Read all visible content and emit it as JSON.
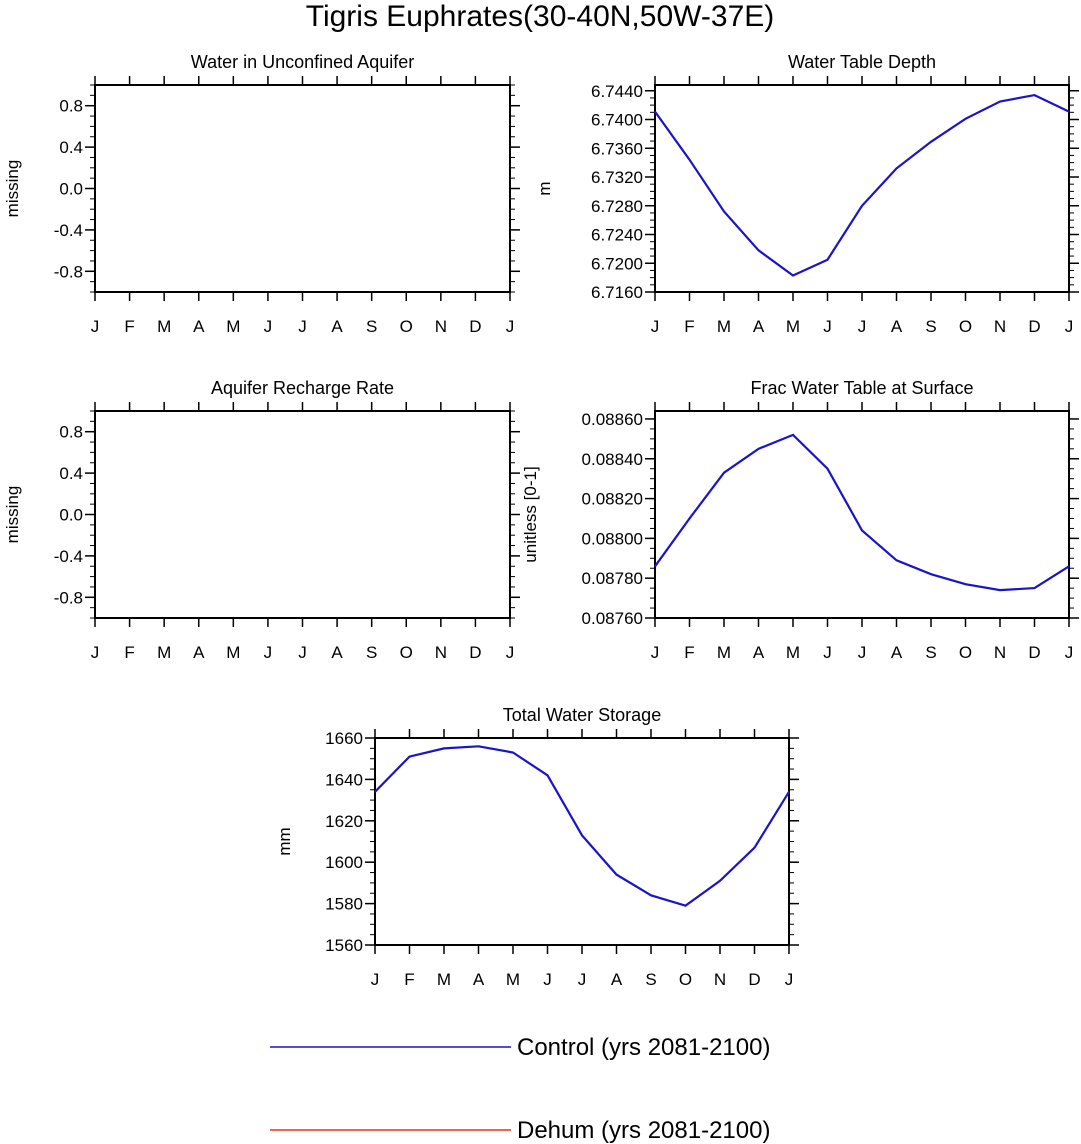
{
  "figure": {
    "title": "Tigris Euphrates(30-40N,50W-37E)"
  },
  "chart_data": [
    {
      "id": "unconfined",
      "type": "line",
      "title": "Water in Unconfined Aquifer",
      "ylabel": "missing",
      "xlabel": "",
      "x_ticks": [
        "J",
        "F",
        "M",
        "A",
        "M",
        "J",
        "J",
        "A",
        "S",
        "O",
        "N",
        "D",
        "J"
      ],
      "ylim": [
        -1.0,
        1.0
      ],
      "y_ticks": [
        -0.8,
        -0.4,
        0.0,
        0.4,
        0.8
      ],
      "y_tick_labels": [
        "-0.8",
        "-0.4",
        "0.0",
        "0.4",
        "0.8"
      ],
      "y_minor_step": 0.1,
      "series": []
    },
    {
      "id": "wtd",
      "type": "line",
      "title": "Water Table Depth",
      "ylabel": "m",
      "xlabel": "",
      "x_ticks": [
        "J",
        "F",
        "M",
        "A",
        "M",
        "J",
        "J",
        "A",
        "S",
        "O",
        "N",
        "D",
        "J"
      ],
      "ylim": [
        6.716,
        6.7448
      ],
      "y_ticks": [
        6.716,
        6.72,
        6.724,
        6.728,
        6.732,
        6.736,
        6.74,
        6.744
      ],
      "y_tick_labels": [
        "6.7160",
        "6.7200",
        "6.7240",
        "6.7280",
        "6.7320",
        "6.7360",
        "6.7400",
        "6.7440"
      ],
      "y_minor_step": 0.001,
      "series": [
        {
          "name": "Control (yrs 2081-2100)",
          "color": "#1a14c8",
          "values": [
            6.7411,
            6.7344,
            6.7272,
            6.7218,
            6.7183,
            6.7205,
            6.728,
            6.7332,
            6.7369,
            6.7401,
            6.7425,
            6.7434,
            6.7411
          ]
        }
      ]
    },
    {
      "id": "recharge",
      "type": "line",
      "title": "Aquifer Recharge Rate",
      "ylabel": "missing",
      "xlabel": "",
      "x_ticks": [
        "J",
        "F",
        "M",
        "A",
        "M",
        "J",
        "J",
        "A",
        "S",
        "O",
        "N",
        "D",
        "J"
      ],
      "ylim": [
        -1.0,
        1.0
      ],
      "y_ticks": [
        -0.8,
        -0.4,
        0.0,
        0.4,
        0.8
      ],
      "y_tick_labels": [
        "-0.8",
        "-0.4",
        "0.0",
        "0.4",
        "0.8"
      ],
      "y_minor_step": 0.1,
      "series": []
    },
    {
      "id": "fwts",
      "type": "line",
      "title": "Frac Water Table at Surface",
      "ylabel": "unitless [0-1]",
      "xlabel": "",
      "x_ticks": [
        "J",
        "F",
        "M",
        "A",
        "M",
        "J",
        "J",
        "A",
        "S",
        "O",
        "N",
        "D",
        "J"
      ],
      "ylim": [
        0.0876,
        0.08864
      ],
      "y_ticks": [
        0.0876,
        0.0878,
        0.088,
        0.0882,
        0.0884,
        0.0886
      ],
      "y_tick_labels": [
        "0.08760",
        "0.08780",
        "0.08800",
        "0.08820",
        "0.08840",
        "0.08860"
      ],
      "y_minor_step": 5e-05,
      "series": [
        {
          "name": "Control (yrs 2081-2100)",
          "color": "#1a14c8",
          "values": [
            0.08786,
            0.0881,
            0.08833,
            0.08845,
            0.08852,
            0.08835,
            0.08804,
            0.08789,
            0.08782,
            0.08777,
            0.08774,
            0.08775,
            0.08786
          ]
        }
      ]
    },
    {
      "id": "tws",
      "type": "line",
      "title": "Total Water Storage",
      "ylabel": "mm",
      "xlabel": "",
      "x_ticks": [
        "J",
        "F",
        "M",
        "A",
        "M",
        "J",
        "J",
        "A",
        "S",
        "O",
        "N",
        "D",
        "J"
      ],
      "ylim": [
        1560,
        1660
      ],
      "y_ticks": [
        1560,
        1580,
        1600,
        1620,
        1640,
        1660
      ],
      "y_tick_labels": [
        "1560",
        "1580",
        "1600",
        "1620",
        "1640",
        "1660"
      ],
      "y_minor_step": 5,
      "series": [
        {
          "name": "Control (yrs 2081-2100)",
          "color": "#1a14c8",
          "values": [
            1634,
            1651,
            1655,
            1656,
            1653,
            1642,
            1613,
            1594,
            1584,
            1579,
            1591,
            1607,
            1634
          ]
        }
      ]
    }
  ],
  "legend": {
    "items": [
      {
        "label": "Control (yrs 2081-2100)",
        "color": "#1a14c8"
      },
      {
        "label": "Dehum (yrs 2081-2100)",
        "color": "#e8321e"
      }
    ]
  }
}
